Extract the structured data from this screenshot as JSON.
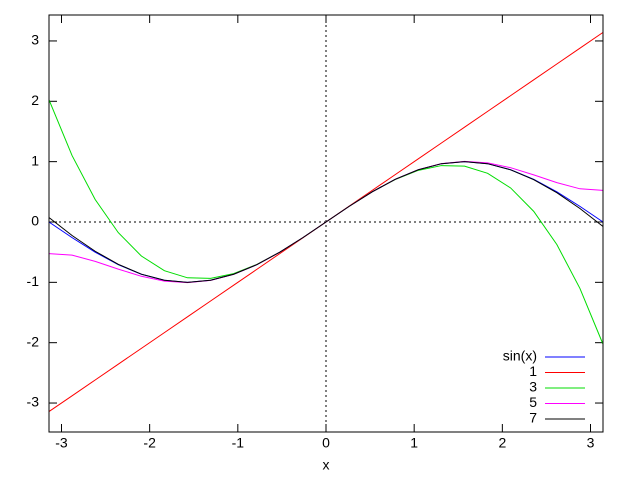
{
  "chart_data": {
    "type": "line",
    "xlabel": "x",
    "x": [
      -3.142,
      -2.88,
      -2.618,
      -2.356,
      -2.094,
      -1.833,
      -1.571,
      -1.309,
      -1.047,
      -0.785,
      -0.524,
      -0.262,
      0,
      0.262,
      0.524,
      0.785,
      1.047,
      1.309,
      1.571,
      1.833,
      2.094,
      2.356,
      2.618,
      2.88,
      3.142
    ],
    "series": [
      {
        "name": "sin(x)",
        "color": "#0000ff",
        "values": [
          0,
          -0.259,
          -0.5,
          -0.707,
          -0.866,
          -0.966,
          -1,
          -0.966,
          -0.866,
          -0.707,
          -0.5,
          -0.259,
          0,
          0.259,
          0.5,
          0.707,
          0.866,
          0.966,
          1,
          0.966,
          0.866,
          0.707,
          0.5,
          0.259,
          0
        ]
      },
      {
        "name": "1",
        "color": "#ff0000",
        "values": [
          -3.142,
          -2.88,
          -2.618,
          -2.356,
          -2.094,
          -1.833,
          -1.571,
          -1.309,
          -1.047,
          -0.785,
          -0.524,
          -0.262,
          0,
          0.262,
          0.524,
          0.785,
          1.047,
          1.309,
          1.571,
          1.833,
          2.094,
          2.356,
          2.618,
          2.88,
          3.142
        ]
      },
      {
        "name": "3",
        "color": "#00dd00",
        "values": [
          2.026,
          1.101,
          0.373,
          -0.176,
          -0.564,
          -0.807,
          -0.925,
          -0.935,
          -0.856,
          -0.704,
          -0.5,
          -0.259,
          0,
          0.259,
          0.5,
          0.704,
          0.856,
          0.935,
          0.925,
          0.807,
          0.564,
          0.176,
          -0.373,
          -1.101,
          -2.026
        ]
      },
      {
        "name": "5",
        "color": "#ff00ff",
        "values": [
          -0.524,
          -0.55,
          -0.652,
          -0.781,
          -0.9,
          -0.98,
          -1.005,
          -0.967,
          -0.867,
          -0.707,
          -0.5,
          -0.259,
          0,
          0.259,
          0.5,
          0.707,
          0.867,
          0.967,
          1.005,
          0.98,
          0.9,
          0.781,
          0.652,
          0.55,
          0.524
        ]
      },
      {
        "name": "7",
        "color": "#000000",
        "values": [
          0.075,
          -0.224,
          -0.485,
          -0.701,
          -0.865,
          -0.966,
          -1,
          -0.966,
          -0.866,
          -0.707,
          -0.5,
          -0.259,
          0,
          0.259,
          0.5,
          0.707,
          0.866,
          0.966,
          1,
          0.966,
          0.865,
          0.701,
          0.485,
          0.224,
          -0.075
        ]
      }
    ],
    "xlim": [
      -3.1416,
      3.1416
    ],
    "xticks": [
      -3,
      -2,
      -1,
      0,
      1,
      2,
      3
    ],
    "ylim": [
      -3.48,
      3.43
    ],
    "yticks": [
      -3,
      -2,
      -1,
      0,
      1,
      2,
      3
    ],
    "zero_axes": true,
    "legend": "bottom-right"
  }
}
